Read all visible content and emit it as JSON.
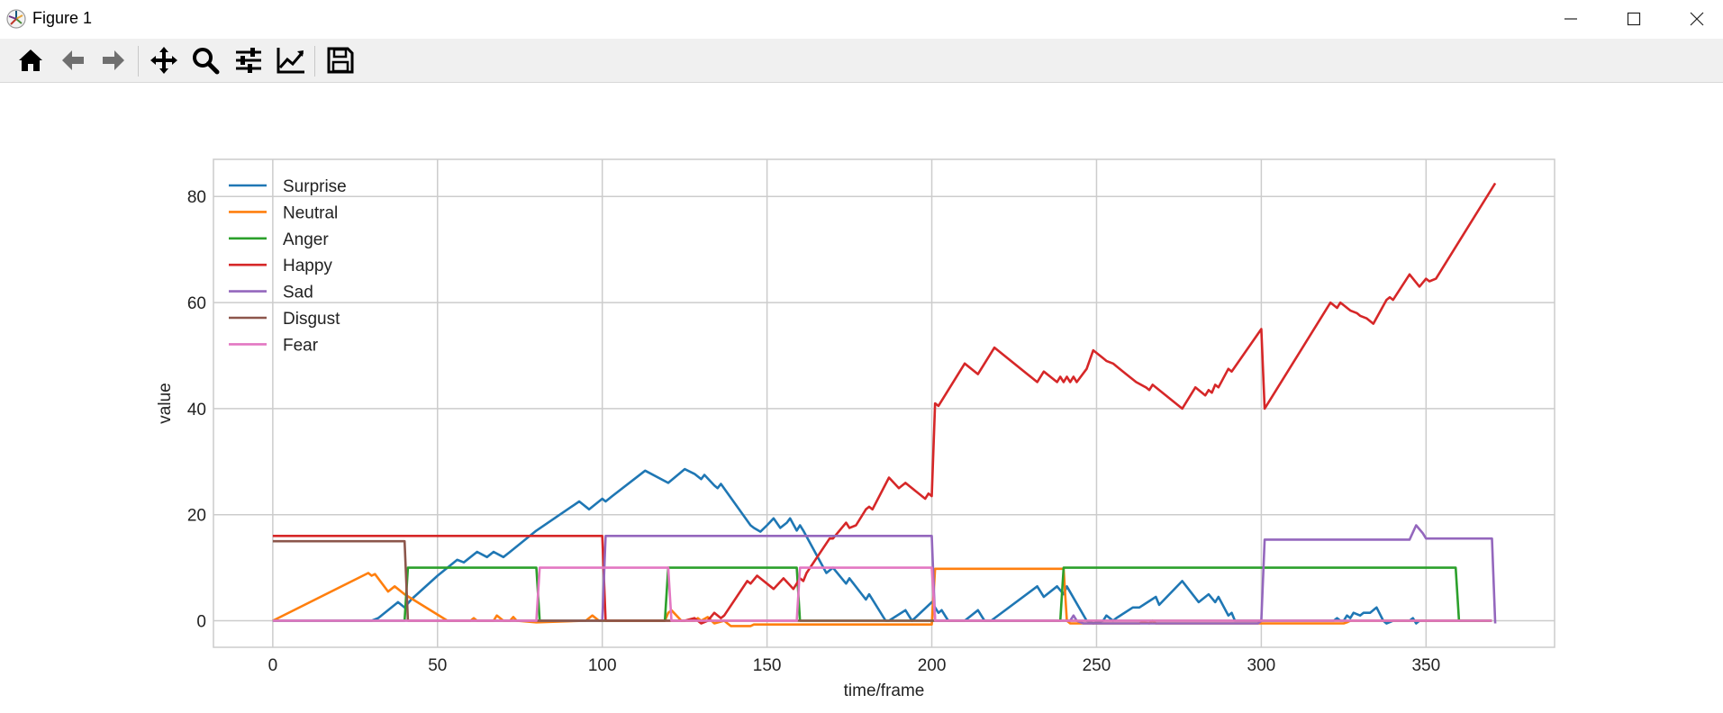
{
  "window": {
    "title": "Figure 1"
  },
  "window_controls": [
    "minimize-icon",
    "maximize-icon",
    "close-icon"
  ],
  "toolbar": {
    "tools": [
      {
        "name": "home",
        "icon": "home-icon"
      },
      {
        "name": "back",
        "icon": "arrow-left-icon"
      },
      {
        "name": "forward",
        "icon": "arrow-right-icon"
      },
      {
        "name": "pan",
        "icon": "move-icon"
      },
      {
        "name": "zoom",
        "icon": "magnifier-icon"
      },
      {
        "name": "configure-subplots",
        "icon": "sliders-icon"
      },
      {
        "name": "edit-axes",
        "icon": "line-chart-icon"
      },
      {
        "name": "save",
        "icon": "floppy-disk-icon"
      }
    ]
  },
  "chart_data": {
    "type": "line",
    "title": "",
    "xlabel": "time/frame",
    "ylabel": "value",
    "xlim": [
      -18,
      389
    ],
    "ylim": [
      -5,
      87
    ],
    "xticks": [
      0,
      50,
      100,
      150,
      200,
      250,
      300,
      350
    ],
    "yticks": [
      0,
      20,
      40,
      60,
      80
    ],
    "grid": true,
    "legend_position": "upper left",
    "series": [
      {
        "name": "Surprise",
        "color": "#1f77b4",
        "points": [
          [
            0,
            0
          ],
          [
            30,
            0
          ],
          [
            32,
            0.5
          ],
          [
            38,
            3.5
          ],
          [
            40,
            2.5
          ],
          [
            42,
            4
          ],
          [
            50,
            8.5
          ],
          [
            56,
            11.5
          ],
          [
            58,
            11
          ],
          [
            62,
            13
          ],
          [
            65,
            12
          ],
          [
            67,
            13
          ],
          [
            70,
            12
          ],
          [
            72,
            13
          ],
          [
            80,
            17
          ],
          [
            93,
            22.5
          ],
          [
            96,
            21
          ],
          [
            100,
            23
          ],
          [
            101,
            22.5
          ],
          [
            103,
            23.5
          ],
          [
            113,
            28.3
          ],
          [
            120,
            26
          ],
          [
            125,
            28.6
          ],
          [
            128,
            27.7
          ],
          [
            130,
            26.7
          ],
          [
            131,
            27.5
          ],
          [
            134,
            25.5
          ],
          [
            135,
            25
          ],
          [
            136,
            25.8
          ],
          [
            145,
            18
          ],
          [
            146,
            17.5
          ],
          [
            148,
            16.8
          ],
          [
            150,
            18
          ],
          [
            152,
            19.3
          ],
          [
            154,
            17.5
          ],
          [
            156,
            18.5
          ],
          [
            157,
            19.3
          ],
          [
            159,
            17
          ],
          [
            160,
            18
          ],
          [
            161,
            17
          ],
          [
            168,
            9
          ],
          [
            170,
            10
          ],
          [
            174,
            7
          ],
          [
            175,
            8
          ],
          [
            180,
            4
          ],
          [
            181,
            5
          ],
          [
            186,
            0
          ],
          [
            187,
            0
          ],
          [
            192,
            2
          ],
          [
            194,
            0
          ],
          [
            200,
            3.5
          ],
          [
            202,
            1.5
          ],
          [
            203,
            2
          ],
          [
            205,
            0
          ],
          [
            210,
            0
          ],
          [
            214,
            2
          ],
          [
            216,
            0
          ],
          [
            218,
            0
          ],
          [
            232,
            6.5
          ],
          [
            234,
            4.5
          ],
          [
            238,
            6.5
          ],
          [
            240,
            5
          ],
          [
            241,
            6.5
          ],
          [
            247,
            0
          ],
          [
            249,
            -0.5
          ],
          [
            252,
            0
          ],
          [
            253,
            1
          ],
          [
            255,
            0
          ],
          [
            256,
            0.5
          ],
          [
            261,
            2.5
          ],
          [
            263,
            2.5
          ],
          [
            268,
            4.5
          ],
          [
            269,
            3
          ],
          [
            276,
            7.5
          ],
          [
            281,
            3.5
          ],
          [
            284,
            5
          ],
          [
            286,
            3.5
          ],
          [
            287,
            4.5
          ],
          [
            290,
            1
          ],
          [
            291,
            1.5
          ],
          [
            292,
            0
          ],
          [
            322,
            0
          ],
          [
            323,
            0.5
          ],
          [
            324,
            0
          ],
          [
            325,
            0
          ],
          [
            326,
            1
          ],
          [
            327,
            0.5
          ],
          [
            328,
            1.5
          ],
          [
            330,
            1
          ],
          [
            331,
            1.5
          ],
          [
            333,
            1.5
          ],
          [
            335,
            2.5
          ],
          [
            337,
            0
          ],
          [
            338,
            -0.5
          ],
          [
            340,
            0
          ],
          [
            345,
            0
          ],
          [
            346,
            0.5
          ],
          [
            347,
            -0.5
          ],
          [
            348,
            0
          ],
          [
            370,
            0
          ]
        ]
      },
      {
        "name": "Neutral",
        "color": "#ff7f0e",
        "points": [
          [
            0,
            0
          ],
          [
            29,
            9
          ],
          [
            30,
            8.5
          ],
          [
            31,
            8.8
          ],
          [
            35,
            5.5
          ],
          [
            37,
            6.5
          ],
          [
            40,
            5
          ],
          [
            53,
            0
          ],
          [
            60,
            0
          ],
          [
            61,
            0.5
          ],
          [
            62,
            0
          ],
          [
            67,
            0
          ],
          [
            68,
            1
          ],
          [
            70,
            0
          ],
          [
            72,
            0
          ],
          [
            73,
            0.7
          ],
          [
            74,
            0
          ],
          [
            80,
            -0.3
          ],
          [
            95,
            0
          ],
          [
            97,
            1
          ],
          [
            99,
            0
          ],
          [
            100,
            0
          ],
          [
            119,
            0
          ],
          [
            120,
            1.5
          ],
          [
            121,
            2
          ],
          [
            124,
            0
          ],
          [
            128,
            0
          ],
          [
            129,
            0.5
          ],
          [
            130,
            0
          ],
          [
            132,
            0.7
          ],
          [
            134,
            -0.5
          ],
          [
            137,
            0
          ],
          [
            138,
            -0.5
          ],
          [
            139,
            -1
          ],
          [
            145,
            -1
          ],
          [
            146,
            -0.7
          ],
          [
            200,
            -0.7
          ],
          [
            201,
            9.8
          ],
          [
            240,
            9.8
          ],
          [
            241,
            0
          ],
          [
            242,
            -0.5
          ],
          [
            263,
            -0.5
          ],
          [
            264,
            -0.3
          ],
          [
            266,
            -0.5
          ],
          [
            267,
            0
          ],
          [
            268,
            -0.5
          ],
          [
            325,
            -0.5
          ],
          [
            326,
            -0.3
          ],
          [
            327,
            0
          ],
          [
            370,
            0
          ]
        ]
      },
      {
        "name": "Anger",
        "color": "#2ca02c",
        "points": [
          [
            0,
            0
          ],
          [
            40,
            0
          ],
          [
            41,
            10
          ],
          [
            80,
            10
          ],
          [
            81,
            0
          ],
          [
            119,
            0
          ],
          [
            120,
            10
          ],
          [
            159,
            10
          ],
          [
            160,
            0
          ],
          [
            200,
            0
          ],
          [
            239,
            0
          ],
          [
            240,
            10
          ],
          [
            359,
            10
          ],
          [
            360,
            0
          ],
          [
            370,
            0
          ]
        ]
      },
      {
        "name": "Happy",
        "color": "#d62728",
        "points": [
          [
            0,
            16
          ],
          [
            100,
            16
          ],
          [
            101,
            0
          ],
          [
            125,
            0
          ],
          [
            128,
            0.5
          ],
          [
            130,
            -0.5
          ],
          [
            132,
            0
          ],
          [
            134,
            1.5
          ],
          [
            136,
            0.5
          ],
          [
            137,
            1
          ],
          [
            144,
            7.5
          ],
          [
            145,
            7
          ],
          [
            147,
            8.5
          ],
          [
            152,
            6
          ],
          [
            155,
            8
          ],
          [
            158,
            6
          ],
          [
            160,
            8
          ],
          [
            161,
            7.5
          ],
          [
            162,
            9
          ],
          [
            169,
            15.5
          ],
          [
            170,
            15.5
          ],
          [
            174,
            18.5
          ],
          [
            175,
            17.5
          ],
          [
            177,
            18
          ],
          [
            180,
            21
          ],
          [
            181,
            21.5
          ],
          [
            182,
            21
          ],
          [
            187,
            27
          ],
          [
            190,
            25
          ],
          [
            192,
            26
          ],
          [
            198,
            23
          ],
          [
            199,
            24
          ],
          [
            200,
            23.5
          ],
          [
            201,
            41
          ],
          [
            202,
            40.5
          ],
          [
            210,
            48.5
          ],
          [
            214,
            46.5
          ],
          [
            219,
            51.5
          ],
          [
            232,
            45
          ],
          [
            234,
            47
          ],
          [
            238,
            45
          ],
          [
            239,
            46
          ],
          [
            240,
            45
          ],
          [
            241,
            46
          ],
          [
            242,
            45
          ],
          [
            243,
            46
          ],
          [
            244,
            45
          ],
          [
            247,
            47.5
          ],
          [
            249,
            51
          ],
          [
            252,
            49.5
          ],
          [
            253,
            49
          ],
          [
            255,
            48.5
          ],
          [
            257,
            47.5
          ],
          [
            259,
            46.5
          ],
          [
            262,
            45
          ],
          [
            265,
            44
          ],
          [
            266,
            43.5
          ],
          [
            267,
            44.5
          ],
          [
            276,
            40
          ],
          [
            280,
            44
          ],
          [
            283,
            42.5
          ],
          [
            284,
            43.5
          ],
          [
            285,
            43
          ],
          [
            286,
            44.5
          ],
          [
            287,
            44
          ],
          [
            290,
            47.5
          ],
          [
            291,
            47
          ],
          [
            300,
            55
          ],
          [
            301,
            40
          ],
          [
            321,
            60
          ],
          [
            323,
            59
          ],
          [
            324,
            60
          ],
          [
            327,
            58.5
          ],
          [
            329,
            58
          ],
          [
            330,
            57.5
          ],
          [
            332,
            57
          ],
          [
            334,
            56
          ],
          [
            338,
            60.5
          ],
          [
            339,
            61
          ],
          [
            340,
            60.5
          ],
          [
            345,
            65.3
          ],
          [
            348,
            63
          ],
          [
            350,
            64.5
          ],
          [
            351,
            64
          ],
          [
            353,
            64.5
          ],
          [
            371,
            82.5
          ]
        ]
      },
      {
        "name": "Sad",
        "color": "#9467bd",
        "points": [
          [
            0,
            0
          ],
          [
            100,
            0
          ],
          [
            101,
            16
          ],
          [
            200,
            16
          ],
          [
            201,
            0
          ],
          [
            242,
            0
          ],
          [
            243,
            1
          ],
          [
            244,
            0
          ],
          [
            246,
            -0.5
          ],
          [
            299,
            -0.5
          ],
          [
            300,
            0
          ],
          [
            301,
            15.3
          ],
          [
            345,
            15.3
          ],
          [
            347,
            18
          ],
          [
            349,
            16.5
          ],
          [
            350,
            15.5
          ],
          [
            370,
            15.5
          ],
          [
            371,
            -0.5
          ]
        ]
      },
      {
        "name": "Disgust",
        "color": "#8c564b",
        "points": [
          [
            0,
            15
          ],
          [
            40,
            15
          ],
          [
            41,
            0
          ],
          [
            370,
            0
          ]
        ]
      },
      {
        "name": "Fear",
        "color": "#e377c2",
        "points": [
          [
            0,
            0
          ],
          [
            80,
            0
          ],
          [
            81,
            10
          ],
          [
            120,
            10
          ],
          [
            121,
            0
          ],
          [
            159,
            0
          ],
          [
            160,
            10
          ],
          [
            200,
            10
          ],
          [
            201,
            0
          ],
          [
            370,
            0
          ]
        ]
      }
    ]
  }
}
